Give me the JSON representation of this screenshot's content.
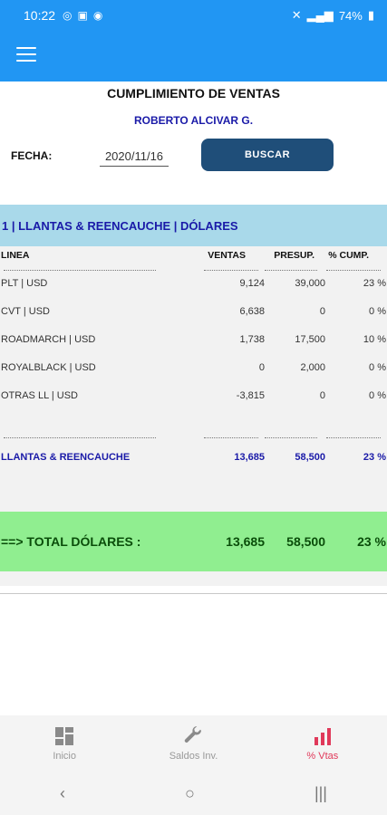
{
  "status_bar": {
    "time": "10:22",
    "battery": "74%"
  },
  "header": {
    "title": "CUMPLIMIENTO DE VENTAS",
    "user": "ROBERTO ALCIVAR G."
  },
  "filter": {
    "date_label": "FECHA:",
    "date_value": "2020/11/16",
    "search_button": "BUSCAR"
  },
  "section": {
    "title": "1 | LLANTAS & REENCAUCHE | DÓLARES"
  },
  "table": {
    "columns": [
      "LINEA",
      "VENTAS",
      "PRESUP.",
      "% CUMP."
    ],
    "separator": "==================",
    "rows": [
      {
        "linea": "PLT | USD",
        "ventas": "9,124",
        "presup": "39,000",
        "cump": "23 %"
      },
      {
        "linea": "CVT | USD",
        "ventas": "6,638",
        "presup": "0",
        "cump": "0 %"
      },
      {
        "linea": "ROADMARCH | USD",
        "ventas": "1,738",
        "presup": "17,500",
        "cump": "10 %"
      },
      {
        "linea": "ROYALBLACK | USD",
        "ventas": "0",
        "presup": "2,000",
        "cump": "0 %"
      },
      {
        "linea": "OTRAS LL | USD",
        "ventas": "-3,815",
        "presup": "0",
        "cump": "0 %"
      }
    ],
    "subtotal": {
      "linea": "LLANTAS & REENCAUCHE",
      "ventas": "13,685",
      "presup": "58,500",
      "cump": "23 %"
    }
  },
  "total": {
    "label": "==> TOTAL DÓLARES :",
    "ventas": "13,685",
    "presup": "58,500",
    "cump": "23 %"
  },
  "bottom_nav": {
    "items": [
      {
        "label": "Inicio",
        "icon": "dashboard-icon"
      },
      {
        "label": "Saldos Inv.",
        "icon": "wrench-icon"
      },
      {
        "label": "% Vtas",
        "icon": "bar-chart-icon"
      }
    ],
    "active_color": "#e0395a"
  },
  "colors": {
    "primary": "#2196f3",
    "button": "#1f4e79",
    "section_bg": "#a9d9ea",
    "total_bg": "#90ee90",
    "accent_text": "#1a1aa8"
  }
}
